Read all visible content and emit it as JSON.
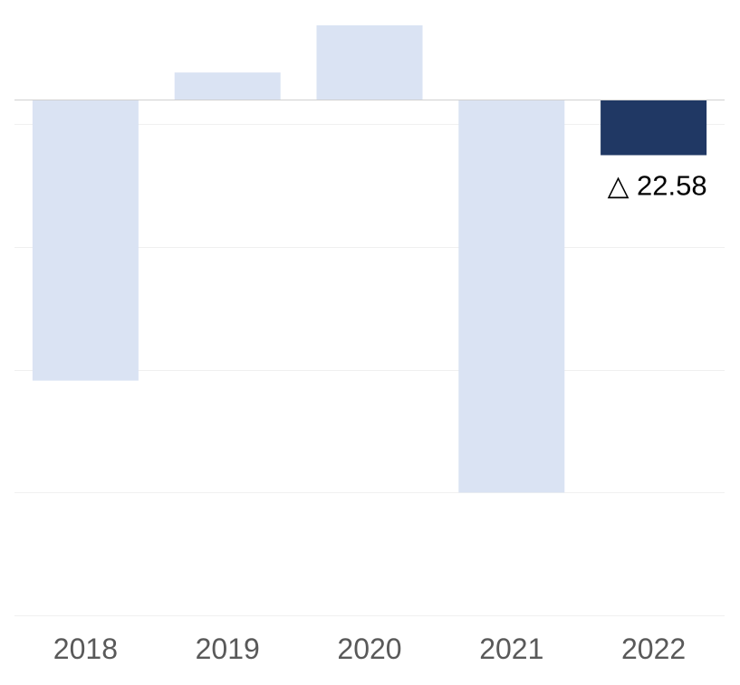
{
  "chart_data": {
    "type": "bar",
    "categories": [
      "2018",
      "2019",
      "2020",
      "2021",
      "2022"
    ],
    "values": [
      -114.4,
      11.1,
      30.3,
      -160.0,
      -22.58
    ],
    "highlight_index": 4,
    "data_labels": [
      {
        "category": "2022",
        "marker": "△",
        "text": "22.58"
      }
    ],
    "ylim": [
      -210,
      30.3
    ],
    "grid": true,
    "gridlines": [
      0,
      -10,
      -60,
      -110,
      -160,
      -210
    ],
    "legend": "none",
    "colors": {
      "bar": "#dae3f3",
      "highlight": "#203864",
      "grid": "#f0f0f0",
      "zero_line": "#d0d0d0",
      "tick_text": "#595959",
      "label_text": "#000000"
    }
  }
}
